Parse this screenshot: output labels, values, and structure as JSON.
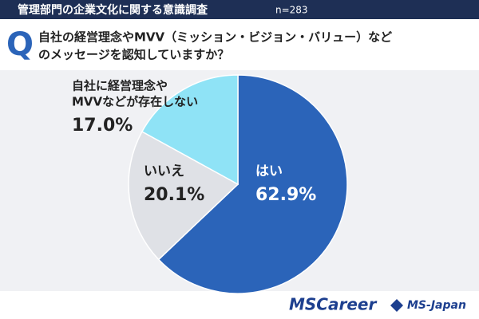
{
  "header": {
    "title": "管理部門の企業文化に関する意識調査",
    "sample": "n=283"
  },
  "question": {
    "mark": "Q",
    "lines": [
      "自社の経営理念やMVV（ミッション・ビジョン・バリュー）など",
      "のメッセージを認知していますか？"
    ]
  },
  "chart_data": {
    "type": "pie",
    "categories": [
      [
        "はい"
      ],
      [
        "いいえ"
      ],
      [
        "自社に経営理念や",
        "MVVなどが存在しない"
      ]
    ],
    "values": [
      62.9,
      20.1,
      17.0
    ],
    "value_labels": [
      "62.9%",
      "20.1%",
      "17.0%"
    ],
    "colors": [
      "#2b64b9",
      "#dfe1e6",
      "#8fe3f6"
    ]
  },
  "footer": {
    "logos": [
      "MSCareer",
      "MS-Japan"
    ]
  }
}
